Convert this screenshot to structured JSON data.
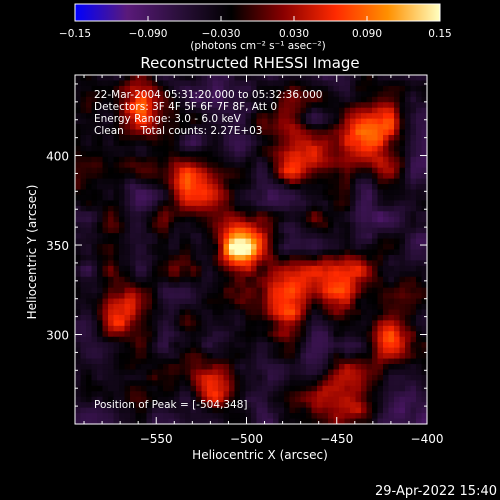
{
  "colorbar": {
    "ticks": [
      "-0.15",
      "-0.090",
      "-0.030",
      "0.030",
      "0.090",
      "0.15"
    ],
    "tick_values": [
      -0.15,
      -0.09,
      -0.03,
      0.03,
      0.09,
      0.15
    ],
    "units_label": "(photons cm⁻² s⁻¹ asec⁻²)",
    "range": [
      -0.15,
      0.15
    ],
    "colors": [
      "#0000ff",
      "#5a1a7a",
      "#2a0f3a",
      "#000000",
      "#8a0000",
      "#ff2a00",
      "#ff9000",
      "#ffffc0"
    ]
  },
  "chart_data": {
    "type": "heatmap",
    "title": "Reconstructed RHESSI Image",
    "xlabel": "Heliocentric X (arcsec)",
    "ylabel": "Heliocentric Y (arcsec)",
    "xlim": [
      -595,
      -400
    ],
    "ylim": [
      250,
      445
    ],
    "xticks": [
      -550,
      -500,
      -450,
      -400
    ],
    "xtick_labels": [
      "−550",
      "−500",
      "−450",
      "−400"
    ],
    "yticks": [
      300,
      350,
      400
    ],
    "ytick_labels": [
      "300",
      "350",
      "400"
    ],
    "info_lines": [
      "22-Mar-2004 05:31:20.000 to 05:32:36.000",
      "Detectors: 3F 4F 5F 6F 7F 8F, Att 0",
      "Energy Range: 3.0 - 6.0 keV",
      "Clean     Total counts: 2.27E+03"
    ],
    "peak_label": "Position of Peak = [-504,348]",
    "peak": {
      "x": -504,
      "y": 348,
      "value": 0.15
    },
    "sources": [
      {
        "x": -504,
        "y": 348,
        "value": 0.15
      },
      {
        "x": -480,
        "y": 322,
        "value": 0.09
      },
      {
        "x": -432,
        "y": 410,
        "value": 0.11
      },
      {
        "x": -555,
        "y": 425,
        "value": 0.06
      },
      {
        "x": -530,
        "y": 380,
        "value": 0.07
      },
      {
        "x": -470,
        "y": 400,
        "value": 0.07
      },
      {
        "x": -450,
        "y": 330,
        "value": 0.07
      },
      {
        "x": -420,
        "y": 300,
        "value": 0.06
      },
      {
        "x": -565,
        "y": 312,
        "value": 0.07
      },
      {
        "x": -520,
        "y": 275,
        "value": 0.05
      },
      {
        "x": -445,
        "y": 262,
        "value": 0.08
      },
      {
        "x": -408,
        "y": 372,
        "value": -0.05
      },
      {
        "x": -545,
        "y": 350,
        "value": -0.03
      },
      {
        "x": -485,
        "y": 290,
        "value": -0.04
      }
    ]
  },
  "footer": {
    "date": "29-Apr-2022 15:40"
  }
}
